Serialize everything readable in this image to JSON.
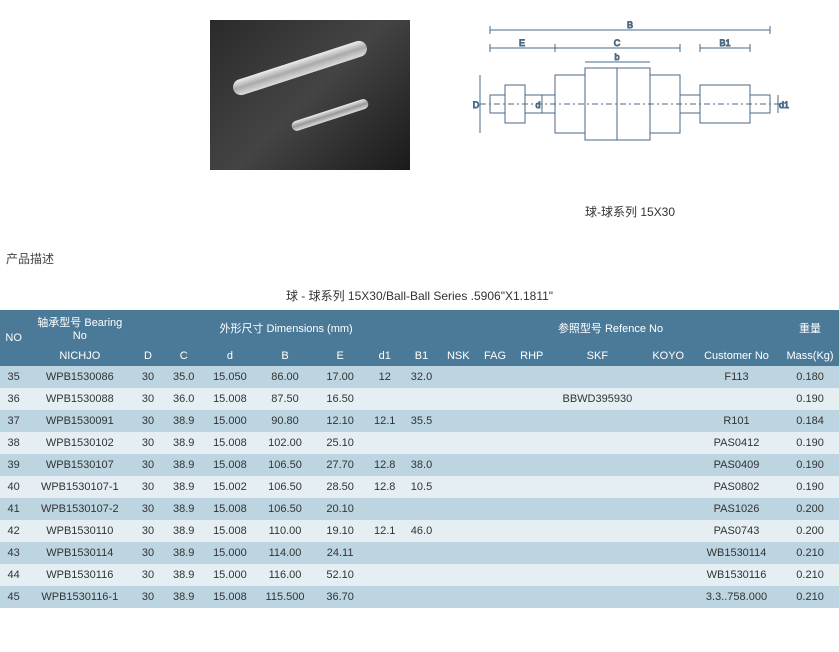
{
  "top": {
    "diagram_caption": "球-球系列 15X30",
    "diagram_labels": {
      "B": "B",
      "E": "E",
      "C": "C",
      "b": "b",
      "B1": "B1",
      "D": "D",
      "d": "d",
      "d1": "d1"
    }
  },
  "desc_label": "产品描述",
  "table_caption": "球 - 球系列 15X30/Ball-Ball Series .5906\"X1.1811\"",
  "header": {
    "no": "NO",
    "bearing_no": "轴承型号 Bearing No",
    "nichjo": "NICHJO",
    "dimensions": "外形尺寸 Dimensions (mm)",
    "D": "D",
    "C": "C",
    "d": "d",
    "B": "B",
    "E": "E",
    "d1": "d1",
    "B1": "B1",
    "reference": "参照型号 Refence No",
    "nsk": "NSK",
    "fag": "FAG",
    "rhp": "RHP",
    "skf": "SKF",
    "koyo": "KOYO",
    "cust": "Customer No",
    "mass_top": "重量",
    "mass_bottom": "Mass(Kg)"
  },
  "rows": [
    {
      "no": "35",
      "nichjo": "WPB1530086",
      "D": "30",
      "C": "35.0",
      "d": "15.050",
      "B": "86.00",
      "E": "17.00",
      "d1": "12",
      "B1": "32.0",
      "nsk": "",
      "fag": "",
      "rhp": "",
      "skf": "",
      "koyo": "",
      "cust": "F113",
      "mass": "0.180"
    },
    {
      "no": "36",
      "nichjo": "WPB1530088",
      "D": "30",
      "C": "36.0",
      "d": "15.008",
      "B": "87.50",
      "E": "16.50",
      "d1": "",
      "B1": "",
      "nsk": "",
      "fag": "",
      "rhp": "",
      "skf": "BBWD395930",
      "koyo": "",
      "cust": "",
      "mass": "0.190"
    },
    {
      "no": "37",
      "nichjo": "WPB1530091",
      "D": "30",
      "C": "38.9",
      "d": "15.000",
      "B": "90.80",
      "E": "12.10",
      "d1": "12.1",
      "B1": "35.5",
      "nsk": "",
      "fag": "",
      "rhp": "",
      "skf": "",
      "koyo": "",
      "cust": "R101",
      "mass": "0.184"
    },
    {
      "no": "38",
      "nichjo": "WPB1530102",
      "D": "30",
      "C": "38.9",
      "d": "15.008",
      "B": "102.00",
      "E": "25.10",
      "d1": "",
      "B1": "",
      "nsk": "",
      "fag": "",
      "rhp": "",
      "skf": "",
      "koyo": "",
      "cust": "PAS0412",
      "mass": "0.190"
    },
    {
      "no": "39",
      "nichjo": "WPB1530107",
      "D": "30",
      "C": "38.9",
      "d": "15.008",
      "B": "106.50",
      "E": "27.70",
      "d1": "12.8",
      "B1": "38.0",
      "nsk": "",
      "fag": "",
      "rhp": "",
      "skf": "",
      "koyo": "",
      "cust": "PAS0409",
      "mass": "0.190"
    },
    {
      "no": "40",
      "nichjo": "WPB1530107-1",
      "D": "30",
      "C": "38.9",
      "d": "15.002",
      "B": "106.50",
      "E": "28.50",
      "d1": "12.8",
      "B1": "10.5",
      "nsk": "",
      "fag": "",
      "rhp": "",
      "skf": "",
      "koyo": "",
      "cust": "PAS0802",
      "mass": "0.190"
    },
    {
      "no": "41",
      "nichjo": "WPB1530107-2",
      "D": "30",
      "C": "38.9",
      "d": "15.008",
      "B": "106.50",
      "E": "20.10",
      "d1": "",
      "B1": "",
      "nsk": "",
      "fag": "",
      "rhp": "",
      "skf": "",
      "koyo": "",
      "cust": "PAS1026",
      "mass": "0.200"
    },
    {
      "no": "42",
      "nichjo": "WPB1530110",
      "D": "30",
      "C": "38.9",
      "d": "15.008",
      "B": "110.00",
      "E": "19.10",
      "d1": "12.1",
      "B1": "46.0",
      "nsk": "",
      "fag": "",
      "rhp": "",
      "skf": "",
      "koyo": "",
      "cust": "PAS0743",
      "mass": "0.200"
    },
    {
      "no": "43",
      "nichjo": "WPB1530114",
      "D": "30",
      "C": "38.9",
      "d": "15.000",
      "B": "114.00",
      "E": "24.11",
      "d1": "",
      "B1": "",
      "nsk": "",
      "fag": "",
      "rhp": "",
      "skf": "",
      "koyo": "",
      "cust": "WB1530114",
      "mass": "0.210"
    },
    {
      "no": "44",
      "nichjo": "WPB1530116",
      "D": "30",
      "C": "38.9",
      "d": "15.000",
      "B": "116.00",
      "E": "52.10",
      "d1": "",
      "B1": "",
      "nsk": "",
      "fag": "",
      "rhp": "",
      "skf": "",
      "koyo": "",
      "cust": "WB1530116",
      "mass": "0.210"
    },
    {
      "no": "45",
      "nichjo": "WPB1530116-1",
      "D": "30",
      "C": "38.9",
      "d": "15.008",
      "B": "115.500",
      "E": "36.70",
      "d1": "",
      "B1": "",
      "nsk": "",
      "fag": "",
      "rhp": "",
      "skf": "",
      "koyo": "",
      "cust": "3.3..758.000",
      "mass": "0.210"
    }
  ],
  "colors": {
    "header_bg": "#4b7a99",
    "header_text": "#ffffff",
    "row_odd_bg": "#bcd5e0",
    "row_even_bg": "#e4eef3",
    "diagram_stroke": "#4a6a85"
  }
}
